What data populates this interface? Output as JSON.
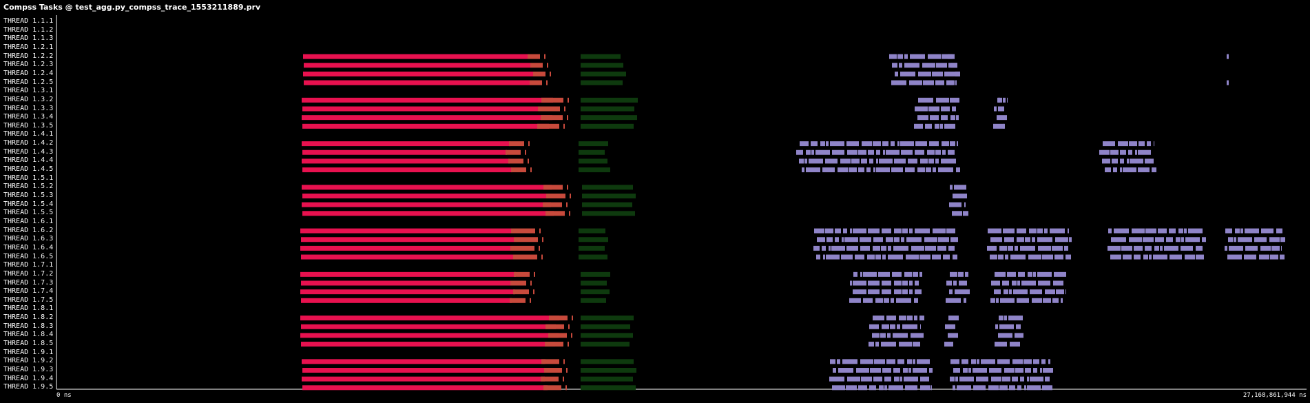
{
  "window": {
    "title": "Compss Tasks @ test_agg.py_compss_trace_1553211889.prv"
  },
  "axis": {
    "start_label": "0 ns",
    "end_label": "27,168,861,944 ns"
  },
  "threads": [
    "THREAD 1.1.1",
    "THREAD 1.1.2",
    "THREAD 1.1.3",
    "THREAD 1.2.1",
    "THREAD 1.2.2",
    "THREAD 1.2.3",
    "THREAD 1.2.4",
    "THREAD 1.2.5",
    "THREAD 1.3.1",
    "THREAD 1.3.2",
    "THREAD 1.3.3",
    "THREAD 1.3.4",
    "THREAD 1.3.5",
    "THREAD 1.4.1",
    "THREAD 1.4.2",
    "THREAD 1.4.3",
    "THREAD 1.4.4",
    "THREAD 1.4.5",
    "THREAD 1.5.1",
    "THREAD 1.5.2",
    "THREAD 1.5.3",
    "THREAD 1.5.4",
    "THREAD 1.5.5",
    "THREAD 1.6.1",
    "THREAD 1.6.2",
    "THREAD 1.6.3",
    "THREAD 1.6.4",
    "THREAD 1.6.5",
    "THREAD 1.7.1",
    "THREAD 1.7.2",
    "THREAD 1.7.3",
    "THREAD 1.7.4",
    "THREAD 1.7.5",
    "THREAD 1.8.1",
    "THREAD 1.8.2",
    "THREAD 1.8.3",
    "THREAD 1.8.4",
    "THREAD 1.8.5",
    "THREAD 1.9.1",
    "THREAD 1.9.2",
    "THREAD 1.9.3",
    "THREAD 1.9.4",
    "THREAD 1.9.5"
  ],
  "colors": {
    "background": "#000000",
    "axis": "#ffffff",
    "task_a": "#e8114f",
    "task_b": "#c84a3c",
    "task_c": "#0e3a0e",
    "task_d": "#8f84c8"
  }
}
